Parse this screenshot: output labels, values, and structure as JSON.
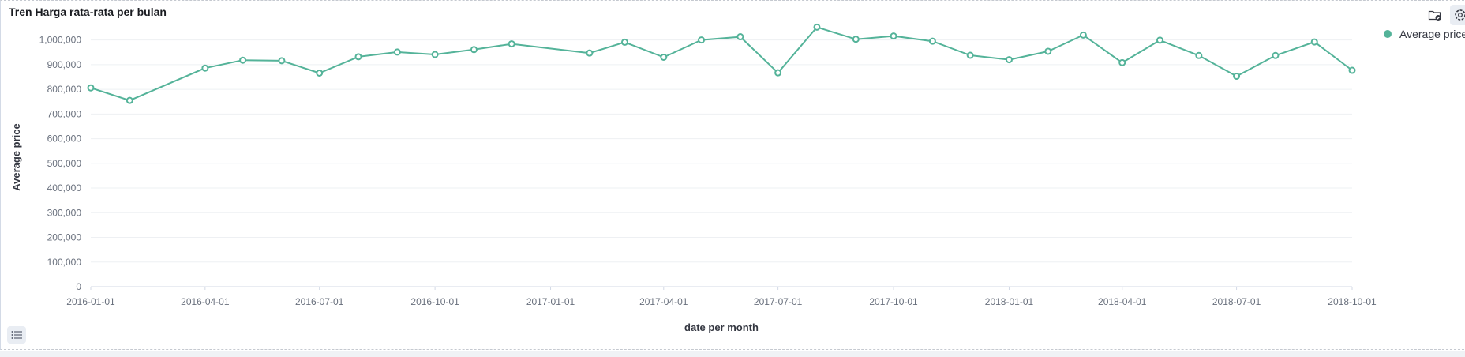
{
  "panel": {
    "title": "Tren Harga rata-rata per bulan"
  },
  "icons": {
    "inspect": "folder-check-icon",
    "options": "gear-icon",
    "legend_toggle": "list-icon"
  },
  "colors": {
    "series": "#54b399",
    "grid": "#eef0f3",
    "axis": "#d3dae6"
  },
  "chart_data": {
    "type": "line",
    "title": "Tren Harga rata-rata per bulan",
    "xlabel": "date per month",
    "ylabel": "Average price",
    "legend_position": "top-right",
    "grid": true,
    "ylim": [
      0,
      1050000
    ],
    "xlim": [
      "2016-01-01",
      "2018-10-01"
    ],
    "yticks": [
      0,
      100000,
      200000,
      300000,
      400000,
      500000,
      600000,
      700000,
      800000,
      900000,
      1000000
    ],
    "ytick_labels": [
      "0",
      "100,000",
      "200,000",
      "300,000",
      "400,000",
      "500,000",
      "600,000",
      "700,000",
      "800,000",
      "900,000",
      "1,000,000"
    ],
    "xticks": [
      "2016-01-01",
      "2016-04-01",
      "2016-07-01",
      "2016-10-01",
      "2017-01-01",
      "2017-04-01",
      "2017-07-01",
      "2017-10-01",
      "2018-01-01",
      "2018-04-01",
      "2018-07-01",
      "2018-10-01"
    ],
    "series": [
      {
        "name": "Average price",
        "color": "#54b399",
        "points": [
          {
            "x": "2016-01-01",
            "y": 806000
          },
          {
            "x": "2016-02-01",
            "y": 755000
          },
          {
            "x": "2016-04-01",
            "y": 886000
          },
          {
            "x": "2016-05-01",
            "y": 918000
          },
          {
            "x": "2016-06-01",
            "y": 916000
          },
          {
            "x": "2016-07-01",
            "y": 866000
          },
          {
            "x": "2016-08-01",
            "y": 932000
          },
          {
            "x": "2016-09-01",
            "y": 951000
          },
          {
            "x": "2016-10-01",
            "y": 941000
          },
          {
            "x": "2016-11-01",
            "y": 961000
          },
          {
            "x": "2016-12-01",
            "y": 984000
          },
          {
            "x": "2017-02-01",
            "y": 947000
          },
          {
            "x": "2017-03-01",
            "y": 991000
          },
          {
            "x": "2017-04-01",
            "y": 930000
          },
          {
            "x": "2017-05-01",
            "y": 1000000
          },
          {
            "x": "2017-06-01",
            "y": 1013000
          },
          {
            "x": "2017-07-01",
            "y": 867000
          },
          {
            "x": "2017-08-01",
            "y": 1052000
          },
          {
            "x": "2017-09-01",
            "y": 1003000
          },
          {
            "x": "2017-10-01",
            "y": 1016000
          },
          {
            "x": "2017-11-01",
            "y": 995000
          },
          {
            "x": "2017-12-01",
            "y": 938000
          },
          {
            "x": "2018-01-01",
            "y": 920000
          },
          {
            "x": "2018-02-01",
            "y": 954000
          },
          {
            "x": "2018-03-01",
            "y": 1020000
          },
          {
            "x": "2018-04-01",
            "y": 908000
          },
          {
            "x": "2018-05-01",
            "y": 999000
          },
          {
            "x": "2018-06-01",
            "y": 937000
          },
          {
            "x": "2018-07-01",
            "y": 853000
          },
          {
            "x": "2018-08-01",
            "y": 937000
          },
          {
            "x": "2018-09-01",
            "y": 992000
          },
          {
            "x": "2018-10-01",
            "y": 877000
          }
        ]
      }
    ]
  }
}
